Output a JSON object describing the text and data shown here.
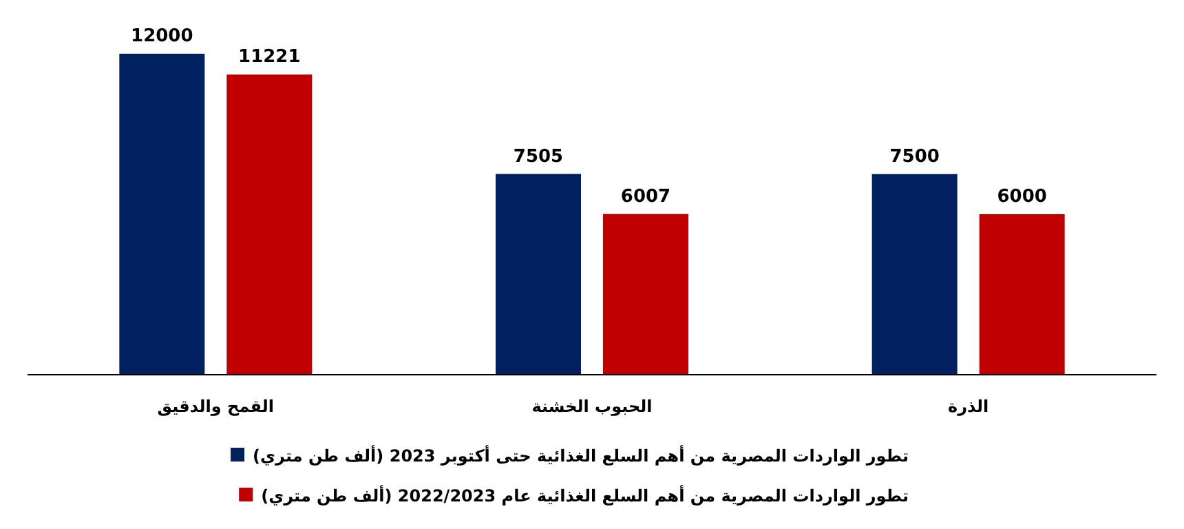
{
  "chart_data": {
    "type": "bar",
    "categories": [
      "القمح والدقيق",
      "الحبوب الخشنة",
      "الذرة"
    ],
    "series": [
      {
        "name": "تطور الواردات المصرية من أهم السلع الغذائية حتى أكتوبر 2023 (ألف طن متري)",
        "color": "#002060",
        "values": [
          12000,
          7505,
          7500
        ]
      },
      {
        "name": "تطور الواردات المصرية من أهم السلع الغذائية عام 2022/2023 (ألف طن متري)",
        "color": "#c00000",
        "values": [
          11221,
          6007,
          6000
        ]
      }
    ],
    "data_labels": true,
    "legend": "bottom"
  }
}
